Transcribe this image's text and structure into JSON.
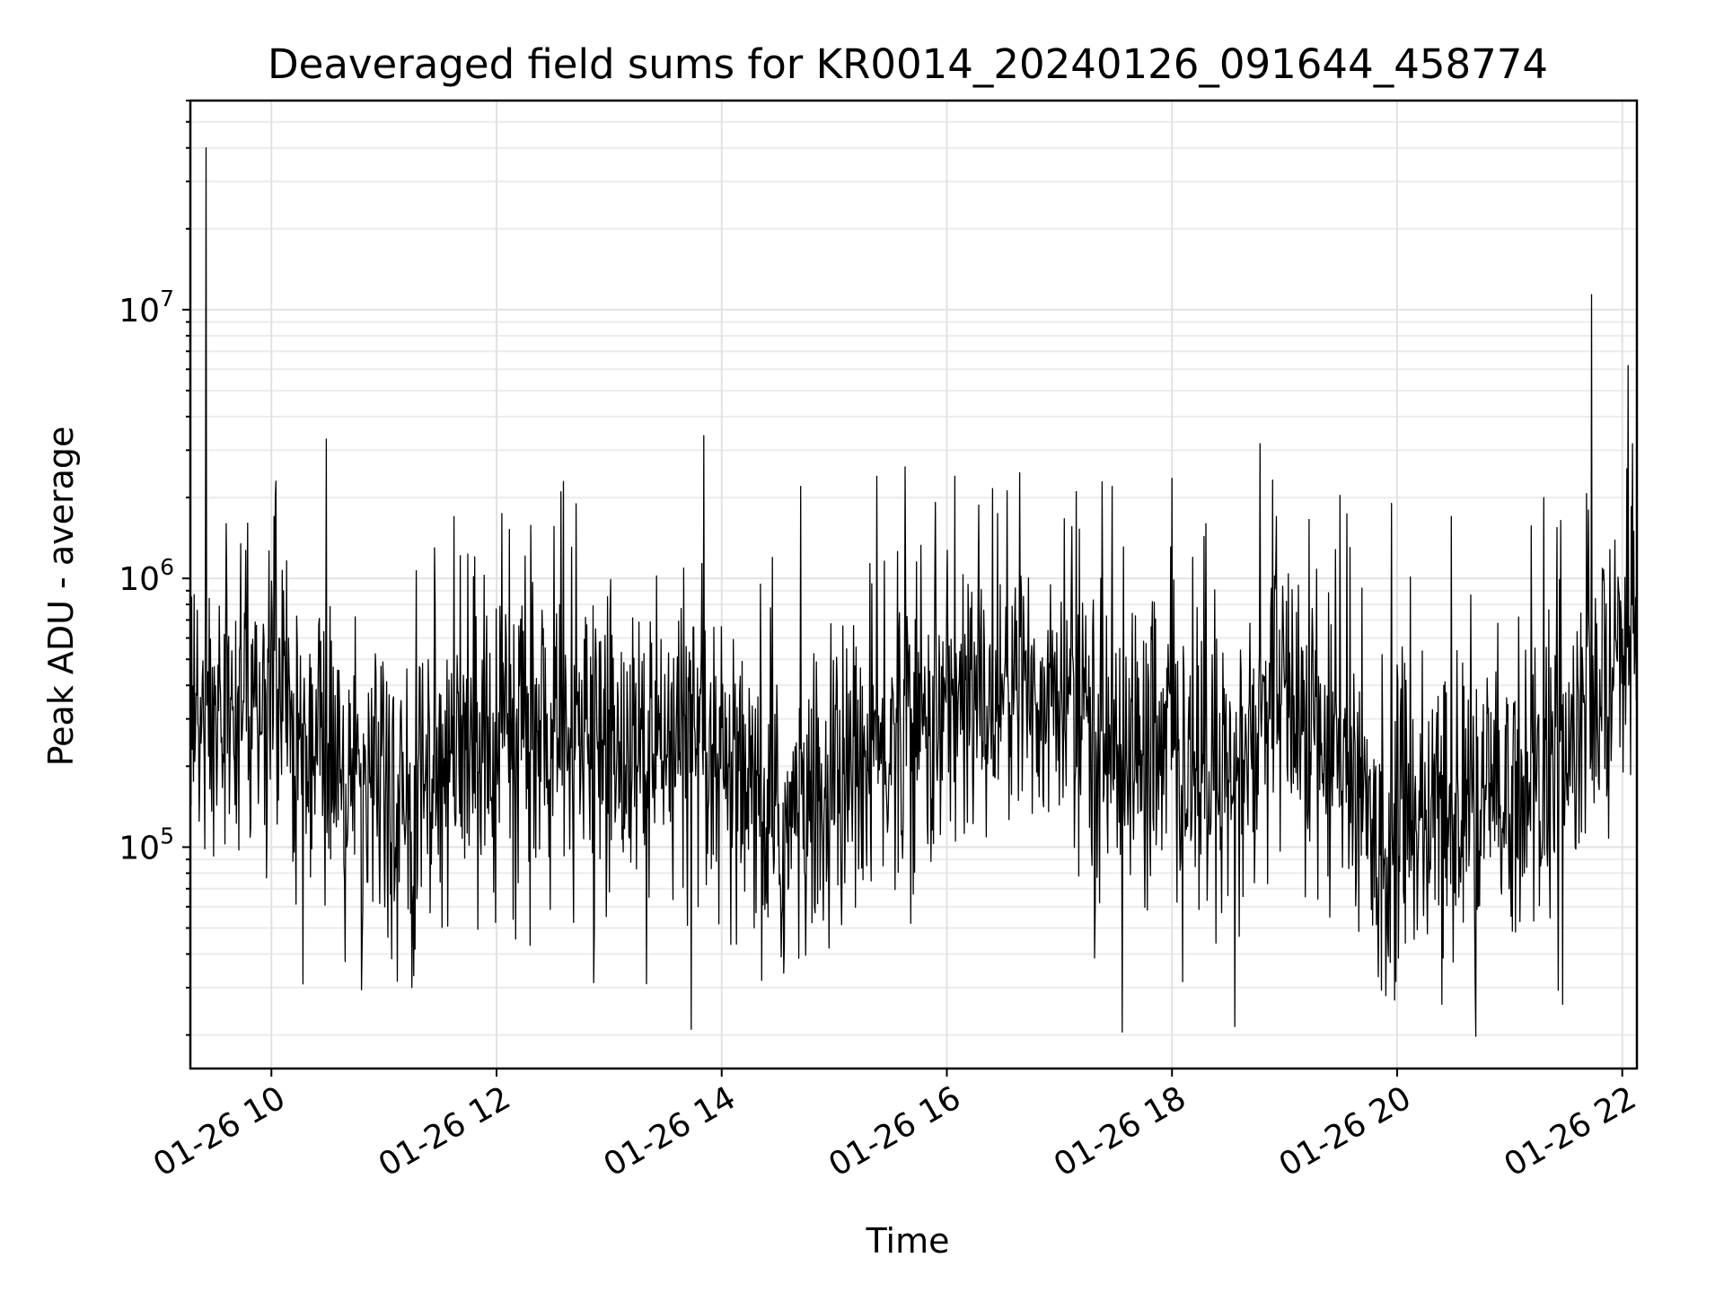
{
  "chart_data": {
    "type": "line",
    "title": "Deaveraged field sums for KR0014_20240126_091644_458774",
    "xlabel": "Time",
    "ylabel": "Peak ADU - average",
    "y_scale": "log",
    "grid": "on (major and minor)",
    "x_range": [
      "2024-01-26 09:16",
      "2024-01-26 22:08"
    ],
    "ylim": [
      15000,
      60000000
    ],
    "x_tick_labels": [
      "01-26 10",
      "01-26 12",
      "01-26 14",
      "01-26 16",
      "01-26 18",
      "01-26 20",
      "01-26 22"
    ],
    "x_tick_hours": [
      10,
      12,
      14,
      16,
      18,
      20,
      22
    ],
    "y_tick_labels": [
      {
        "base": "10",
        "exponent": "5",
        "value": 100000
      },
      {
        "base": "10",
        "exponent": "6",
        "value": 1000000
      },
      {
        "base": "10",
        "exponent": "7",
        "value": 10000000
      }
    ],
    "line_color": "#000000",
    "x_start_hour": 9.28,
    "x_end_hour": 22.13,
    "sample_count": 2300,
    "baseline": [
      {
        "hour": 9.3,
        "value": 300000
      },
      {
        "hour": 10.0,
        "value": 300000
      },
      {
        "hour": 10.5,
        "value": 220000
      },
      {
        "hour": 11.0,
        "value": 130000
      },
      {
        "hour": 11.5,
        "value": 180000
      },
      {
        "hour": 12.0,
        "value": 260000
      },
      {
        "hour": 12.5,
        "value": 230000
      },
      {
        "hour": 13.0,
        "value": 240000
      },
      {
        "hour": 13.5,
        "value": 200000
      },
      {
        "hour": 14.0,
        "value": 170000
      },
      {
        "hour": 14.5,
        "value": 110000
      },
      {
        "hour": 15.0,
        "value": 160000
      },
      {
        "hour": 15.5,
        "value": 240000
      },
      {
        "hour": 16.0,
        "value": 330000
      },
      {
        "hour": 16.5,
        "value": 380000
      },
      {
        "hour": 17.0,
        "value": 350000
      },
      {
        "hour": 17.5,
        "value": 230000
      },
      {
        "hour": 18.0,
        "value": 200000
      },
      {
        "hour": 18.5,
        "value": 160000
      },
      {
        "hour": 19.0,
        "value": 360000
      },
      {
        "hour": 19.5,
        "value": 200000
      },
      {
        "hour": 19.8,
        "value": 110000
      },
      {
        "hour": 20.2,
        "value": 120000
      },
      {
        "hour": 20.7,
        "value": 130000
      },
      {
        "hour": 21.2,
        "value": 170000
      },
      {
        "hour": 21.6,
        "value": 240000
      },
      {
        "hour": 21.9,
        "value": 420000
      },
      {
        "hour": 22.13,
        "value": 650000
      }
    ],
    "peaks": [
      {
        "hour": 9.42,
        "value": 40000000
      },
      {
        "hour": 9.6,
        "value": 1600000
      },
      {
        "hour": 10.04,
        "value": 2300000
      },
      {
        "hour": 10.49,
        "value": 3300000
      },
      {
        "hour": 11.45,
        "value": 1300000
      },
      {
        "hour": 12.57,
        "value": 2100000
      },
      {
        "hour": 13.84,
        "value": 3400000
      },
      {
        "hour": 14.7,
        "value": 2200000
      },
      {
        "hour": 15.38,
        "value": 2400000
      },
      {
        "hour": 15.63,
        "value": 2600000
      },
      {
        "hour": 16.07,
        "value": 2400000
      },
      {
        "hour": 17.47,
        "value": 2200000
      },
      {
        "hour": 18.3,
        "value": 1600000
      },
      {
        "hour": 18.93,
        "value": 1700000
      },
      {
        "hour": 19.95,
        "value": 1900000
      },
      {
        "hour": 20.48,
        "value": 1700000
      },
      {
        "hour": 21.3,
        "value": 2000000
      },
      {
        "hour": 22.05,
        "value": 6200000
      }
    ],
    "dips": [
      {
        "hour": 13.73,
        "value": 21000
      },
      {
        "hour": 17.56,
        "value": 20500
      },
      {
        "hour": 18.56,
        "value": 21500
      },
      {
        "hour": 19.9,
        "value": 28000
      },
      {
        "hour": 20.4,
        "value": 26000
      },
      {
        "hour": 21.47,
        "value": 26000
      },
      {
        "hour": 11.25,
        "value": 30000
      },
      {
        "hour": 13.33,
        "value": 31000
      }
    ]
  }
}
